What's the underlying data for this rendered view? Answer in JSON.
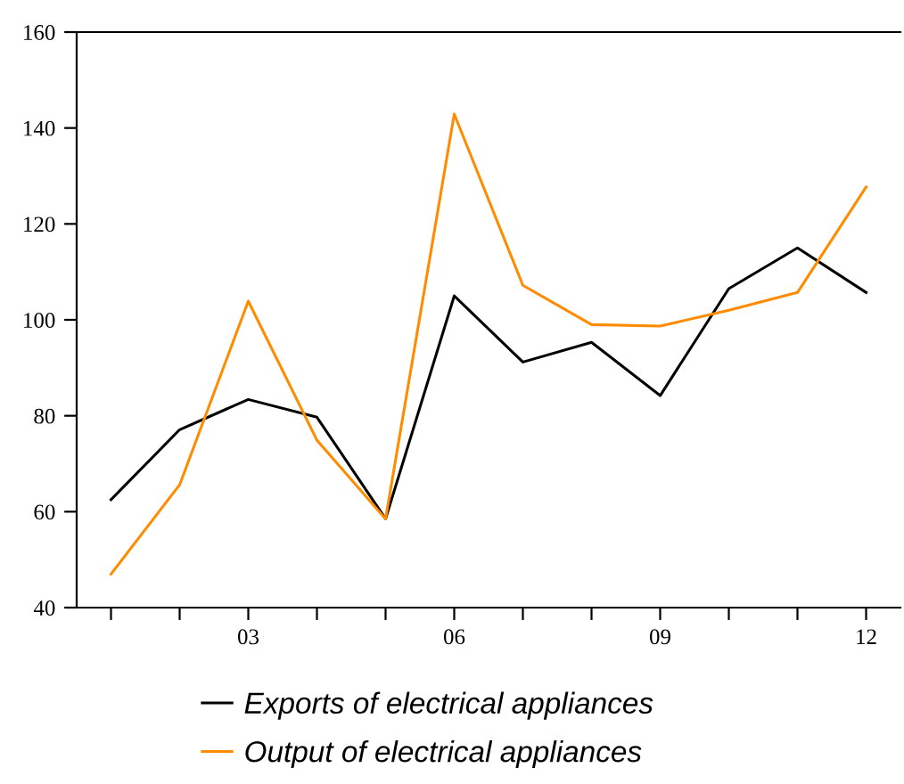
{
  "chart_data": {
    "type": "line",
    "x": [
      1,
      2,
      3,
      4,
      5,
      6,
      7,
      8,
      9,
      10,
      11,
      12
    ],
    "series": [
      {
        "name": "Exports of electrical appliances",
        "color": "#000000",
        "values": [
          62.5,
          77.1,
          83.4,
          79.7,
          58.5,
          105,
          91.2,
          95.3,
          84.2,
          106.5,
          115,
          105.7
        ]
      },
      {
        "name": "Output of electrical appliances",
        "color": "#ff8c00",
        "values": [
          47,
          65.6,
          103.9,
          74.9,
          58.5,
          142.9,
          107.2,
          99,
          98.7,
          102,
          105.7,
          127.7
        ]
      }
    ],
    "xlim": [
      0.5,
      12.5
    ],
    "xticks": [
      {
        "value": 1,
        "label": null
      },
      {
        "value": 2,
        "label": null
      },
      {
        "value": 3,
        "label": "03"
      },
      {
        "value": 4,
        "label": null
      },
      {
        "value": 5,
        "label": null
      },
      {
        "value": 6,
        "label": "06"
      },
      {
        "value": 7,
        "label": null
      },
      {
        "value": 8,
        "label": null
      },
      {
        "value": 9,
        "label": "09"
      },
      {
        "value": 10,
        "label": null
      },
      {
        "value": 11,
        "label": null
      },
      {
        "value": 12,
        "label": "12"
      }
    ],
    "ylim": [
      40,
      160
    ],
    "yticks": [
      40,
      60,
      80,
      100,
      120,
      140,
      160
    ],
    "legend": "bottom",
    "grid": false,
    "marker": "none",
    "line_style": "solid"
  }
}
